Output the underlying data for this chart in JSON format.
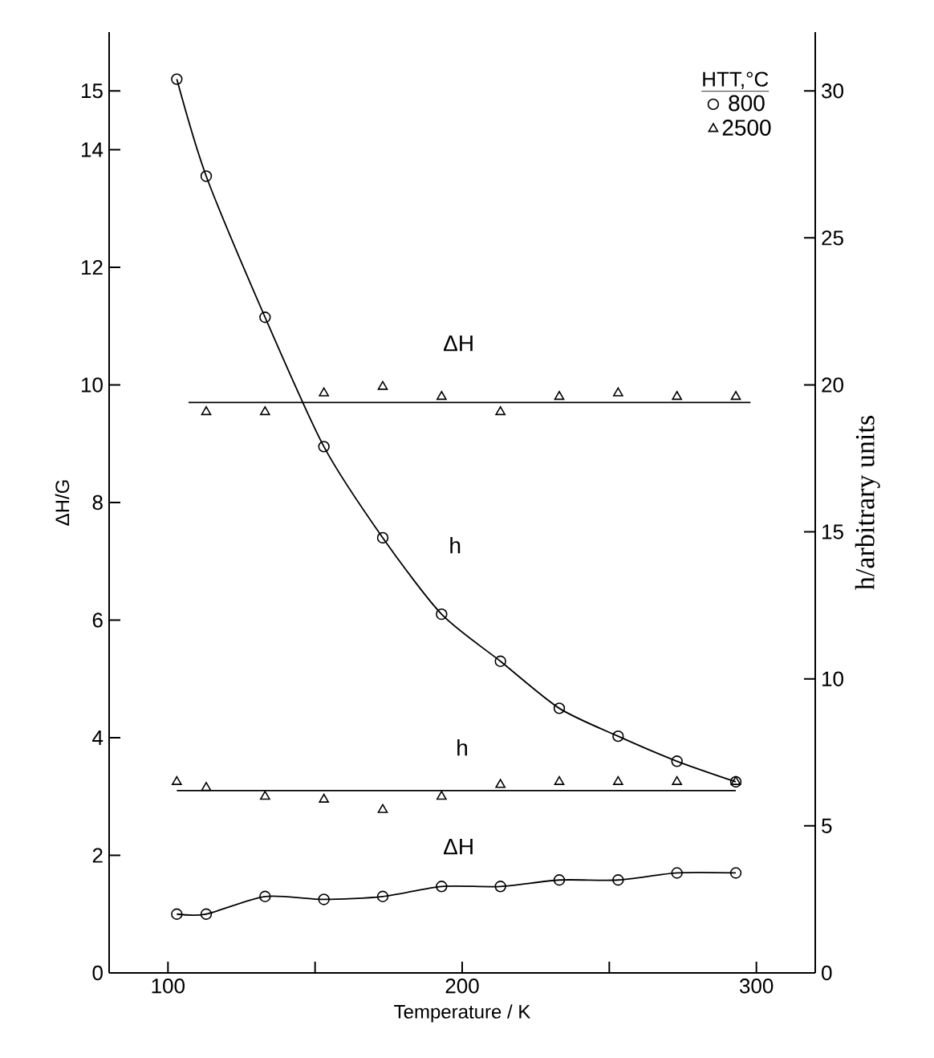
{
  "chart_data": {
    "type": "line",
    "xlabel": "Temperature / K",
    "ylabel": "ΔH/G",
    "y2label": "h/arbitrary units",
    "legend_title": "HTT,°C",
    "xlim": [
      80,
      320
    ],
    "xticks": [
      100,
      {
        "value": 150,
        "label": null
      },
      200,
      {
        "value": 250,
        "label": null
      },
      300
    ],
    "ylim": [
      0,
      16
    ],
    "yticks": [
      0,
      2,
      4,
      6,
      8,
      10,
      12,
      14,
      15
    ],
    "y2lim": [
      0,
      32
    ],
    "y2ticks": [
      0,
      5,
      10,
      15,
      20,
      25,
      30
    ],
    "legend": "top right",
    "series": [
      {
        "name": "800",
        "marker": "circle",
        "axis": "y2",
        "color": "#000000",
        "x": [
          103,
          113,
          133,
          153,
          173,
          193,
          213,
          233,
          253,
          273,
          293
        ],
        "values": [
          30.4,
          27.1,
          22.3,
          17.9,
          14.8,
          12.2,
          10.6,
          9.0,
          8.05,
          7.2,
          6.5
        ]
      },
      {
        "marker": "circle",
        "color": "#000000",
        "x": [
          103,
          113,
          133,
          153,
          173,
          193,
          213,
          233,
          253,
          273,
          293
        ],
        "values": [
          1.0,
          1.0,
          1.3,
          1.25,
          1.3,
          1.47,
          1.47,
          1.58,
          1.58,
          1.7,
          1.7
        ]
      },
      {
        "name": "2500",
        "type": "scatter",
        "marker": "triangle",
        "color": "#000000",
        "x": [
          113,
          133,
          153,
          173,
          193,
          213,
          233,
          253,
          273,
          293
        ],
        "values": [
          9.54,
          9.54,
          9.86,
          9.97,
          9.8,
          9.54,
          9.8,
          9.86,
          9.8,
          9.8
        ]
      },
      {
        "type": "scatter",
        "marker": "triangle",
        "axis": "y2",
        "color": "#000000",
        "x": [
          103,
          113,
          133,
          153,
          173,
          193,
          213,
          233,
          253,
          273,
          293
        ],
        "values": [
          6.5,
          6.3,
          6.0,
          5.9,
          5.55,
          6.0,
          6.4,
          6.5,
          6.5,
          6.5,
          6.5
        ]
      },
      {
        "marker": "none",
        "color": "#000000",
        "x": [
          107,
          298
        ],
        "values": [
          9.7,
          9.7
        ]
      },
      {
        "marker": "none",
        "axis": "y2",
        "color": "#000000",
        "x": [
          103,
          293
        ],
        "values": [
          6.2,
          6.2
        ]
      }
    ],
    "annotations": [
      "ΔH",
      "h",
      "h",
      "ΔH"
    ]
  }
}
